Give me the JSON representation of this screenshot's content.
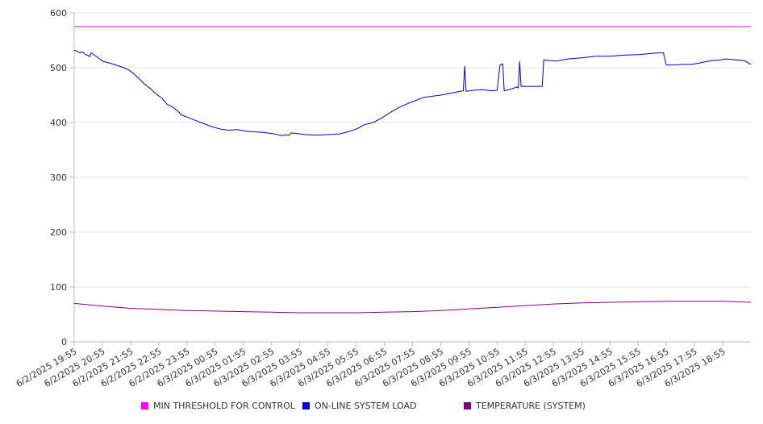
{
  "chart_data": {
    "type": "line",
    "title": "",
    "xlabel": "",
    "ylabel": "",
    "ylim": [
      0,
      600
    ],
    "y_ticks": [
      0,
      100,
      200,
      300,
      400,
      500,
      600
    ],
    "grid": "horizontal",
    "legend_placement": "bottom",
    "categories": [
      "6/2/2025 19:55",
      "6/2/2025 20:55",
      "6/2/2025 21:55",
      "6/2/2025 22:55",
      "6/2/2025 23:55",
      "6/3/2025 00:55",
      "6/3/2025 01:55",
      "6/3/2025 02:55",
      "6/3/2025 03:55",
      "6/3/2025 04:55",
      "6/3/2025 05:55",
      "6/3/2025 06:55",
      "6/3/2025 07:55",
      "6/3/2025 08:55",
      "6/3/2025 09:55",
      "6/3/2025 10:55",
      "6/3/2025 11:55",
      "6/3/2025 12:55",
      "6/3/2025 13:55",
      "6/3/2025 14:55",
      "6/3/2025 15:55",
      "6/3/2025 16:55",
      "6/3/2025 17:55",
      "6/3/2025 18:55"
    ],
    "series": [
      {
        "name": "MIN THRESHOLD FOR CONTROL",
        "color": "#ff00ff",
        "points": [
          [
            0,
            575
          ],
          [
            24,
            575
          ]
        ]
      },
      {
        "name": "ON-LINE SYSTEM LOAD",
        "color": "#0000cc",
        "points": [
          [
            0,
            532
          ],
          [
            0.1,
            530
          ],
          [
            0.2,
            527
          ],
          [
            0.3,
            529
          ],
          [
            0.4,
            524
          ],
          [
            0.5,
            522
          ],
          [
            0.55,
            520
          ],
          [
            0.6,
            527
          ],
          [
            0.8,
            520
          ],
          [
            1.0,
            512
          ],
          [
            1.3,
            508
          ],
          [
            1.6,
            503
          ],
          [
            1.9,
            497
          ],
          [
            2.1,
            490
          ],
          [
            2.3,
            480
          ],
          [
            2.5,
            470
          ],
          [
            2.7,
            462
          ],
          [
            2.9,
            452
          ],
          [
            3.1,
            445
          ],
          [
            3.3,
            433
          ],
          [
            3.5,
            428
          ],
          [
            3.7,
            420
          ],
          [
            3.8,
            414
          ],
          [
            4.0,
            410
          ],
          [
            4.3,
            404
          ],
          [
            4.6,
            398
          ],
          [
            4.9,
            392
          ],
          [
            5.2,
            388
          ],
          [
            5.5,
            386
          ],
          [
            5.8,
            387
          ],
          [
            6.1,
            384
          ],
          [
            6.4,
            383
          ],
          [
            6.7,
            382
          ],
          [
            7.0,
            380
          ],
          [
            7.2,
            378
          ],
          [
            7.4,
            376
          ],
          [
            7.5,
            378
          ],
          [
            7.6,
            376
          ],
          [
            7.7,
            381
          ],
          [
            7.9,
            380
          ],
          [
            8.2,
            378
          ],
          [
            8.6,
            377
          ],
          [
            9.0,
            378
          ],
          [
            9.4,
            379
          ],
          [
            9.7,
            383
          ],
          [
            10.0,
            388
          ],
          [
            10.3,
            396
          ],
          [
            10.6,
            400
          ],
          [
            10.9,
            408
          ],
          [
            11.2,
            418
          ],
          [
            11.5,
            427
          ],
          [
            11.8,
            434
          ],
          [
            12.1,
            440
          ],
          [
            12.4,
            446
          ],
          [
            12.7,
            448
          ],
          [
            13.0,
            450
          ],
          [
            13.3,
            453
          ],
          [
            13.6,
            456
          ],
          [
            13.8,
            458
          ],
          [
            13.85,
            503
          ],
          [
            13.9,
            457
          ],
          [
            14.2,
            459
          ],
          [
            14.5,
            460
          ],
          [
            14.8,
            458
          ],
          [
            15.0,
            459
          ],
          [
            15.1,
            505
          ],
          [
            15.2,
            507
          ],
          [
            15.25,
            458
          ],
          [
            15.5,
            461
          ],
          [
            15.7,
            465
          ],
          [
            15.75,
            463
          ],
          [
            15.8,
            511
          ],
          [
            15.85,
            466
          ],
          [
            16.2,
            466
          ],
          [
            16.5,
            466
          ],
          [
            16.6,
            466
          ],
          [
            16.65,
            514
          ],
          [
            16.9,
            513
          ],
          [
            17.1,
            512
          ],
          [
            17.5,
            516
          ],
          [
            18.0,
            518
          ],
          [
            18.5,
            521
          ],
          [
            19.0,
            521
          ],
          [
            19.5,
            523
          ],
          [
            20.0,
            524
          ],
          [
            20.5,
            526
          ],
          [
            20.7,
            527
          ],
          [
            20.9,
            527
          ],
          [
            21.0,
            505
          ],
          [
            21.3,
            505
          ],
          [
            21.6,
            506
          ],
          [
            21.9,
            506
          ],
          [
            22.1,
            508
          ],
          [
            22.3,
            510
          ],
          [
            22.6,
            513
          ],
          [
            22.9,
            514
          ],
          [
            23.1,
            516
          ],
          [
            23.3,
            515
          ],
          [
            23.6,
            514
          ],
          [
            23.8,
            512
          ],
          [
            23.9,
            509
          ],
          [
            24.0,
            506
          ]
        ]
      },
      {
        "name": "TEMPERATURE (SYSTEM)",
        "color": "#800080",
        "points": [
          [
            0,
            70
          ],
          [
            1.0,
            65
          ],
          [
            2.0,
            61
          ],
          [
            3.0,
            59
          ],
          [
            4.0,
            57
          ],
          [
            5.0,
            56
          ],
          [
            6.0,
            55
          ],
          [
            7.0,
            54
          ],
          [
            8.0,
            53
          ],
          [
            9.0,
            53
          ],
          [
            10.0,
            53
          ],
          [
            11.0,
            54
          ],
          [
            12.0,
            55
          ],
          [
            13.0,
            57
          ],
          [
            14.0,
            60
          ],
          [
            15.0,
            63
          ],
          [
            16.0,
            66
          ],
          [
            17.0,
            69
          ],
          [
            18.0,
            71
          ],
          [
            19.0,
            72
          ],
          [
            20.0,
            73
          ],
          [
            21.0,
            74
          ],
          [
            22.0,
            74
          ],
          [
            23.0,
            74
          ],
          [
            24.0,
            72
          ]
        ]
      }
    ]
  },
  "legend": {
    "items": [
      {
        "label": "MIN THRESHOLD FOR CONTROL",
        "color": "#ff00ff"
      },
      {
        "label": "ON-LINE SYSTEM LOAD",
        "color": "#0000cc"
      },
      {
        "label": "TEMPERATURE (SYSTEM)",
        "color": "#800080"
      }
    ]
  }
}
